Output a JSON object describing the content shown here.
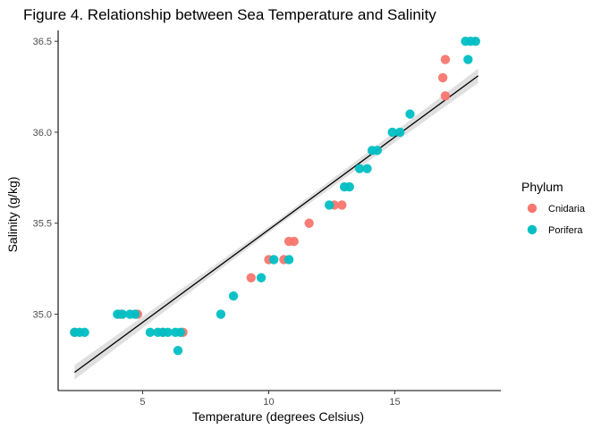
{
  "chart_data": {
    "type": "scatter",
    "title": "Figure 4. Relationship between Sea Temperature and Salinity",
    "xlabel": "Temperature (degrees Celsius)",
    "ylabel": "Salinity (g/kg)",
    "xlim": [
      1.65,
      19.2
    ],
    "ylim": [
      34.58,
      36.56
    ],
    "x_ticks": [
      5,
      10,
      15
    ],
    "y_ticks": [
      35.0,
      35.5,
      36.0,
      36.5
    ],
    "x_tick_labels": [
      "5",
      "10",
      "15"
    ],
    "y_tick_labels": [
      "35.0",
      "35.5",
      "36.0",
      "36.5"
    ],
    "grid": false,
    "legend": {
      "title": "Phylum",
      "position": "right",
      "entries": [
        {
          "label": "Cnidaria",
          "color": "#F8766D"
        },
        {
          "label": "Porifera",
          "color": "#00BFC4"
        }
      ]
    },
    "series": [
      {
        "name": "Cnidaria",
        "color": "#F8766D",
        "x": [
          2.3,
          4.1,
          4.8,
          5.8,
          6.6,
          9.3,
          10.0,
          10.6,
          10.8,
          11.0,
          11.6,
          12.6,
          12.9,
          16.9,
          17.0,
          17.0
        ],
        "y": [
          34.9,
          35.0,
          35.0,
          34.9,
          34.9,
          35.2,
          35.3,
          35.3,
          35.4,
          35.4,
          35.5,
          35.6,
          35.6,
          36.3,
          36.4,
          36.2
        ]
      },
      {
        "name": "Porifera",
        "color": "#00BFC4",
        "x": [
          2.3,
          2.5,
          2.7,
          4.0,
          4.2,
          4.5,
          4.7,
          5.3,
          5.6,
          5.8,
          6.0,
          6.3,
          6.5,
          6.4,
          8.1,
          8.6,
          9.7,
          10.2,
          10.8,
          12.4,
          13.0,
          13.2,
          13.6,
          13.9,
          14.1,
          14.3,
          14.9,
          15.2,
          15.6,
          17.8,
          17.9,
          18.0,
          18.2
        ],
        "y": [
          34.9,
          34.9,
          34.9,
          35.0,
          35.0,
          35.0,
          35.0,
          34.9,
          34.9,
          34.9,
          34.9,
          34.9,
          34.9,
          34.8,
          35.0,
          35.1,
          35.2,
          35.3,
          35.3,
          35.6,
          35.7,
          35.7,
          35.8,
          35.8,
          35.9,
          35.9,
          36.0,
          36.0,
          36.1,
          36.5,
          36.4,
          36.5,
          36.5
        ]
      }
    ],
    "trend_line": {
      "x": [
        2.3,
        18.3
      ],
      "y": [
        34.68,
        36.31
      ],
      "color": "#000000",
      "band_color": "#d9d9d9"
    }
  }
}
